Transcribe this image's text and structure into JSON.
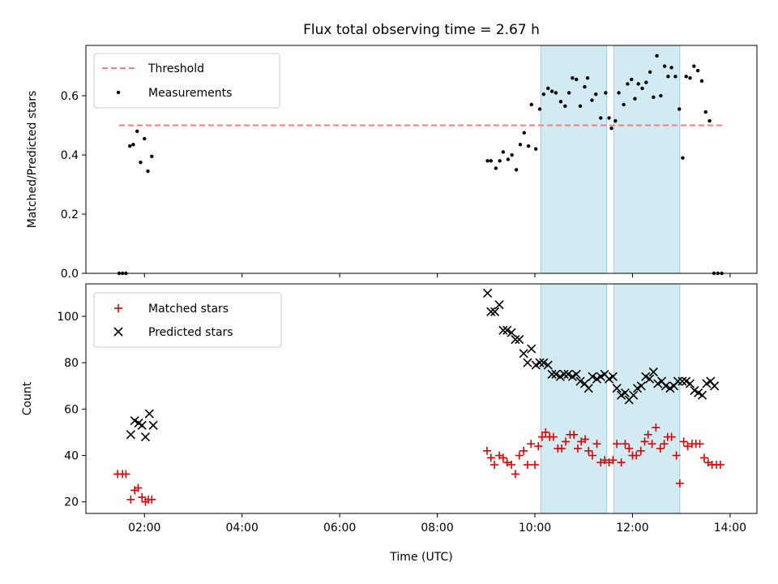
{
  "chart_data": {
    "type": "scatter",
    "title": "Flux total observing time = 2.67 h",
    "xlabel": "Time (UTC)",
    "x_unit": "hours (UTC)",
    "xlim": [
      0.8,
      14.55
    ],
    "xticks": [
      {
        "value": 2,
        "label": "02:00"
      },
      {
        "value": 4,
        "label": "04:00"
      },
      {
        "value": 6,
        "label": "06:00"
      },
      {
        "value": 8,
        "label": "08:00"
      },
      {
        "value": 10,
        "label": "10:00"
      },
      {
        "value": 12,
        "label": "12:00"
      },
      {
        "value": 14,
        "label": "14:00"
      }
    ],
    "shaded_intervals": [
      [
        10.12,
        11.47
      ],
      [
        11.62,
        12.97
      ]
    ],
    "colors": {
      "threshold": "#f08080",
      "measurements": "#000000",
      "matched": "#e00000",
      "predicted": "#000000",
      "shade": "#add8e6"
    },
    "panels": [
      {
        "ylabel": "Matched/Predicted stars",
        "ylim": [
          0,
          0.77
        ],
        "yticks": [
          0.0,
          0.2,
          0.4,
          0.6
        ],
        "ytick_decimals": 1,
        "legend_position": "top-left",
        "threshold": {
          "name": "Threshold",
          "value": 0.5,
          "x_range": [
            1.48,
            13.85
          ]
        },
        "series": [
          {
            "name": "Measurements",
            "marker": "dot",
            "points": [
              [
                1.48,
                0
              ],
              [
                1.55,
                0
              ],
              [
                1.62,
                0
              ],
              [
                1.7,
                0.43
              ],
              [
                1.77,
                0.435
              ],
              [
                1.85,
                0.48
              ],
              [
                1.92,
                0.375
              ],
              [
                2.0,
                0.455
              ],
              [
                2.07,
                0.345
              ],
              [
                2.15,
                0.395
              ],
              [
                9.03,
                0.38
              ],
              [
                9.1,
                0.38
              ],
              [
                9.2,
                0.355
              ],
              [
                9.28,
                0.38
              ],
              [
                9.35,
                0.41
              ],
              [
                9.45,
                0.385
              ],
              [
                9.53,
                0.4
              ],
              [
                9.62,
                0.35
              ],
              [
                9.7,
                0.435
              ],
              [
                9.78,
                0.475
              ],
              [
                9.87,
                0.43
              ],
              [
                9.93,
                0.57
              ],
              [
                10.02,
                0.42
              ],
              [
                10.1,
                0.555
              ],
              [
                10.18,
                0.605
              ],
              [
                10.27,
                0.625
              ],
              [
                10.35,
                0.615
              ],
              [
                10.43,
                0.61
              ],
              [
                10.53,
                0.58
              ],
              [
                10.62,
                0.565
              ],
              [
                10.7,
                0.61
              ],
              [
                10.77,
                0.66
              ],
              [
                10.85,
                0.655
              ],
              [
                10.93,
                0.565
              ],
              [
                11.02,
                0.63
              ],
              [
                11.08,
                0.66
              ],
              [
                11.17,
                0.585
              ],
              [
                11.25,
                0.605
              ],
              [
                11.35,
                0.525
              ],
              [
                11.45,
                0.61
              ],
              [
                11.52,
                0.525
              ],
              [
                11.57,
                0.49
              ],
              [
                11.65,
                0.515
              ],
              [
                11.72,
                0.61
              ],
              [
                11.82,
                0.57
              ],
              [
                11.9,
                0.64
              ],
              [
                11.98,
                0.655
              ],
              [
                12.05,
                0.59
              ],
              [
                12.12,
                0.64
              ],
              [
                12.2,
                0.625
              ],
              [
                12.28,
                0.645
              ],
              [
                12.36,
                0.68
              ],
              [
                12.43,
                0.595
              ],
              [
                12.5,
                0.735
              ],
              [
                12.58,
                0.6
              ],
              [
                12.66,
                0.7
              ],
              [
                12.73,
                0.665
              ],
              [
                12.8,
                0.695
              ],
              [
                12.88,
                0.665
              ],
              [
                12.96,
                0.555
              ],
              [
                13.03,
                0.39
              ],
              [
                13.1,
                0.665
              ],
              [
                13.18,
                0.66
              ],
              [
                13.26,
                0.7
              ],
              [
                13.34,
                0.685
              ],
              [
                13.42,
                0.65
              ],
              [
                13.5,
                0.545
              ],
              [
                13.58,
                0.515
              ],
              [
                13.67,
                0
              ],
              [
                13.75,
                0
              ],
              [
                13.83,
                0
              ]
            ]
          }
        ]
      },
      {
        "ylabel": "Count",
        "ylim": [
          15,
          114
        ],
        "yticks": [
          20,
          40,
          60,
          80,
          100
        ],
        "ytick_decimals": 0,
        "legend_position": "top-left",
        "series": [
          {
            "name": "Matched stars",
            "marker": "plus",
            "points": [
              [
                1.45,
                32
              ],
              [
                1.55,
                32
              ],
              [
                1.62,
                32
              ],
              [
                1.72,
                21
              ],
              [
                1.8,
                25
              ],
              [
                1.87,
                26
              ],
              [
                1.95,
                22
              ],
              [
                2.02,
                20
              ],
              [
                2.08,
                21
              ],
              [
                2.15,
                21
              ],
              [
                9.02,
                42
              ],
              [
                9.1,
                39
              ],
              [
                9.17,
                36
              ],
              [
                9.27,
                40
              ],
              [
                9.35,
                39
              ],
              [
                9.43,
                37
              ],
              [
                9.52,
                36
              ],
              [
                9.6,
                32
              ],
              [
                9.68,
                40
              ],
              [
                9.77,
                42
              ],
              [
                9.85,
                36
              ],
              [
                9.92,
                45
              ],
              [
                10.0,
                36
              ],
              [
                10.07,
                44
              ],
              [
                10.15,
                48
              ],
              [
                10.22,
                50
              ],
              [
                10.3,
                48
              ],
              [
                10.38,
                48
              ],
              [
                10.47,
                43
              ],
              [
                10.55,
                43
              ],
              [
                10.63,
                46
              ],
              [
                10.72,
                49
              ],
              [
                10.8,
                49
              ],
              [
                10.88,
                43
              ],
              [
                10.95,
                46
              ],
              [
                11.03,
                47
              ],
              [
                11.1,
                42
              ],
              [
                11.18,
                40
              ],
              [
                11.27,
                45
              ],
              [
                11.35,
                37
              ],
              [
                11.43,
                38
              ],
              [
                11.52,
                37
              ],
              [
                11.6,
                38
              ],
              [
                11.68,
                45
              ],
              [
                11.77,
                37
              ],
              [
                11.85,
                45
              ],
              [
                11.93,
                43
              ],
              [
                12.0,
                40
              ],
              [
                12.08,
                40
              ],
              [
                12.17,
                42
              ],
              [
                12.25,
                46
              ],
              [
                12.32,
                49
              ],
              [
                12.4,
                45
              ],
              [
                12.48,
                52
              ],
              [
                12.57,
                43
              ],
              [
                12.65,
                45
              ],
              [
                12.72,
                48
              ],
              [
                12.8,
                48
              ],
              [
                12.9,
                40
              ],
              [
                12.97,
                28
              ],
              [
                13.05,
                46
              ],
              [
                13.13,
                44
              ],
              [
                13.22,
                45
              ],
              [
                13.3,
                45
              ],
              [
                13.38,
                45
              ],
              [
                13.47,
                39
              ],
              [
                13.55,
                37
              ],
              [
                13.63,
                36
              ],
              [
                13.72,
                36
              ],
              [
                13.8,
                36
              ]
            ]
          },
          {
            "name": "Predicted stars",
            "marker": "x",
            "points": [
              [
                1.72,
                49
              ],
              [
                1.8,
                55
              ],
              [
                1.88,
                54
              ],
              [
                1.95,
                53
              ],
              [
                2.02,
                48
              ],
              [
                2.1,
                58
              ],
              [
                2.18,
                53
              ],
              [
                9.03,
                110
              ],
              [
                9.1,
                102
              ],
              [
                9.18,
                102
              ],
              [
                9.27,
                105
              ],
              [
                9.35,
                94
              ],
              [
                9.43,
                94
              ],
              [
                9.52,
                93
              ],
              [
                9.6,
                90
              ],
              [
                9.68,
                90
              ],
              [
                9.77,
                84
              ],
              [
                9.85,
                80
              ],
              [
                9.93,
                86
              ],
              [
                10.02,
                79
              ],
              [
                10.1,
                80
              ],
              [
                10.18,
                80
              ],
              [
                10.27,
                79
              ],
              [
                10.35,
                75
              ],
              [
                10.43,
                75
              ],
              [
                10.52,
                74
              ],
              [
                10.6,
                75
              ],
              [
                10.68,
                75
              ],
              [
                10.77,
                74
              ],
              [
                10.85,
                75
              ],
              [
                10.93,
                72
              ],
              [
                11.02,
                71
              ],
              [
                11.1,
                69
              ],
              [
                11.18,
                74
              ],
              [
                11.27,
                73
              ],
              [
                11.35,
                74
              ],
              [
                11.43,
                75
              ],
              [
                11.52,
                73
              ],
              [
                11.6,
                74
              ],
              [
                11.68,
                69
              ],
              [
                11.77,
                66
              ],
              [
                11.85,
                67
              ],
              [
                11.93,
                64
              ],
              [
                12.02,
                66
              ],
              [
                12.1,
                69
              ],
              [
                12.18,
                70
              ],
              [
                12.27,
                74
              ],
              [
                12.35,
                73
              ],
              [
                12.43,
                76
              ],
              [
                12.52,
                71
              ],
              [
                12.6,
                72
              ],
              [
                12.68,
                70
              ],
              [
                12.77,
                69
              ],
              [
                12.85,
                70
              ],
              [
                12.93,
                72
              ],
              [
                13.02,
                72
              ],
              [
                13.1,
                72
              ],
              [
                13.18,
                71
              ],
              [
                13.27,
                68
              ],
              [
                13.35,
                67
              ],
              [
                13.43,
                66
              ],
              [
                13.52,
                71
              ],
              [
                13.6,
                72
              ],
              [
                13.68,
                70
              ]
            ]
          }
        ]
      }
    ]
  }
}
